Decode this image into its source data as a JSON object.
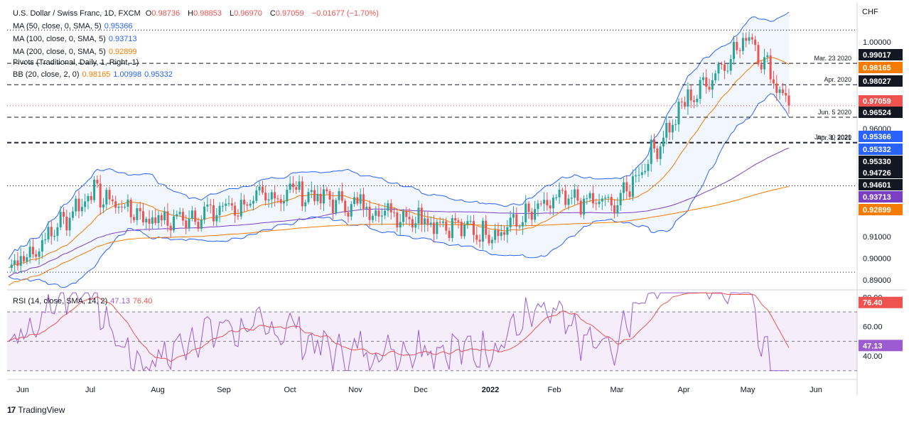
{
  "header": {
    "symbol": "U.S. Dollar / Swiss Franc, 1D, FXCM",
    "o_label": "O",
    "o": "0.98736",
    "h_label": "H",
    "h": "0.98853",
    "l_label": "L",
    "l": "0.96970",
    "c_label": "C",
    "c": "0.97059",
    "change": "−0.01677 (−1.70%)"
  },
  "indicators": [
    {
      "label": "MA (50, close, 0, SMA, 5)",
      "values": [
        "0.95366"
      ],
      "colors": [
        "#2962ff"
      ]
    },
    {
      "label": "MA (100, close, 0, SMA, 5)",
      "values": [
        "0.93713"
      ],
      "colors": [
        "#7b3fc4"
      ]
    },
    {
      "label": "MA (200, close, 0, SMA, 5)",
      "values": [
        "0.92899"
      ],
      "colors": [
        "#f57c00"
      ]
    },
    {
      "label": "Pivots (Traditional, Daily, 1, Right, 1)",
      "values": [],
      "colors": []
    },
    {
      "label": "BB (20, close, 2, 0)",
      "values": [
        "0.98165",
        "1.00998",
        "0.95332"
      ],
      "colors": [
        "#f57c00",
        "#2962ff",
        "#2962ff"
      ]
    }
  ],
  "rsi_legend": {
    "label": "RSI (14, close, SMA, 14, 2)",
    "values": [
      "47.13",
      "76.40"
    ]
  },
  "currency": "CHF",
  "brand": {
    "logo": "17",
    "name": "TradingView"
  },
  "colors": {
    "up": "#26a69a",
    "down": "#ef5350",
    "bb": "#2962ff",
    "ma50": "#2962ff",
    "ma100": "#7b3fc4",
    "ma200": "#f57c00",
    "rsi": "#9c5bd0",
    "rsi_ma": "#ef5350"
  },
  "chart_data": {
    "type": "candlestick",
    "price_axis": {
      "ticks": [
        1.0,
        0.96,
        0.91,
        0.9,
        0.89
      ],
      "tick_labels": [
        "1.00000",
        "0.96000",
        "0.91000",
        "0.90000",
        "0.89000"
      ],
      "range": [
        0.886,
        1.0175
      ]
    },
    "time_axis": {
      "labels": [
        "Jun",
        "Jul",
        "Aug",
        "Sep",
        "Oct",
        "Nov",
        "Dec",
        "2022",
        "Feb",
        "Mar",
        "Apr",
        "May",
        "Jun"
      ]
    },
    "price_tags": [
      {
        "value": 0.99017,
        "text": "0.99017",
        "bg": "#131722",
        "fg": "#ffffff"
      },
      {
        "value": 0.98165,
        "text": "0.98165",
        "bg": "#f57c00",
        "fg": "#ffffff"
      },
      {
        "value": 0.98027,
        "text": "0.98027",
        "bg": "#131722",
        "fg": "#ffffff"
      },
      {
        "value": 0.97059,
        "text": "0.97059",
        "bg": "#ef5350",
        "fg": "#ffffff"
      },
      {
        "value": 0.96524,
        "text": "0.96524",
        "bg": "#131722",
        "fg": "#ffffff"
      },
      {
        "value": 0.95366,
        "text": "0.95366",
        "bg": "#2962ff",
        "fg": "#ffffff"
      },
      {
        "value": 0.95332,
        "text": "0.95332",
        "bg": "#2962ff",
        "fg": "#ffffff"
      },
      {
        "value": 0.9533,
        "text": "0.95330",
        "bg": "#131722",
        "fg": "#ffffff"
      },
      {
        "value": 0.94726,
        "text": "0.94726",
        "bg": "#131722",
        "fg": "#ffffff"
      },
      {
        "value": 0.94601,
        "text": "0.94601",
        "bg": "#131722",
        "fg": "#ffffff"
      },
      {
        "value": 0.93713,
        "text": "0.93713",
        "bg": "#7b3fc4",
        "fg": "#ffffff"
      },
      {
        "value": 0.92899,
        "text": "0.92899",
        "bg": "#f57c00",
        "fg": "#ffffff"
      }
    ],
    "levels": [
      {
        "value": 0.99017,
        "label": "Mar. 23 2020",
        "style": "dashed"
      },
      {
        "value": 0.98027,
        "label": "Apr. 2020",
        "style": "dashed"
      },
      {
        "value": 0.96524,
        "label": "Jun. 5 2020",
        "style": "dashed"
      },
      {
        "value": 0.95366,
        "label": "Jun. 30 2020",
        "style": "dashed"
      },
      {
        "value": 0.95332,
        "label": "Apr. 1, 2021",
        "style": "dashed"
      },
      {
        "value": 1.0056,
        "label": "",
        "style": "dotted"
      },
      {
        "value": 0.97059,
        "label": "",
        "style": "dotted-red"
      },
      {
        "value": 0.9335,
        "label": "",
        "style": "dotted"
      },
      {
        "value": 0.8935,
        "label": "",
        "style": "dotted"
      }
    ],
    "series": {
      "close_monthly": [
        {
          "month": "Jun",
          "close": 0.9005
        },
        {
          "month": "Jul",
          "close": 0.9305
        },
        {
          "month": "Aug",
          "close": 0.9165
        },
        {
          "month": "Sep",
          "close": 0.9225
        },
        {
          "month": "Oct",
          "close": 0.931
        },
        {
          "month": "Nov",
          "close": 0.924
        },
        {
          "month": "Dec",
          "close": 0.9185
        },
        {
          "month": "2022",
          "close": 0.911
        },
        {
          "month": "Feb",
          "close": 0.9265
        },
        {
          "month": "Mar",
          "close": 0.9255
        },
        {
          "month": "Apr",
          "close": 0.971
        },
        {
          "month": "May",
          "close": 1.003
        },
        {
          "month": "May-end",
          "close": 0.97059
        }
      ]
    },
    "rsi": {
      "ticks": [
        80,
        60,
        40
      ],
      "tick_labels": [
        "80.00",
        "60.00",
        "40.00"
      ],
      "band": [
        30,
        70
      ],
      "range": [
        26,
        84
      ],
      "tags": [
        {
          "value": 76.4,
          "text": "76.40",
          "bg": "#ef5350"
        },
        {
          "value": 47.13,
          "text": "47.13",
          "bg": "#9c5bd0"
        }
      ]
    }
  }
}
